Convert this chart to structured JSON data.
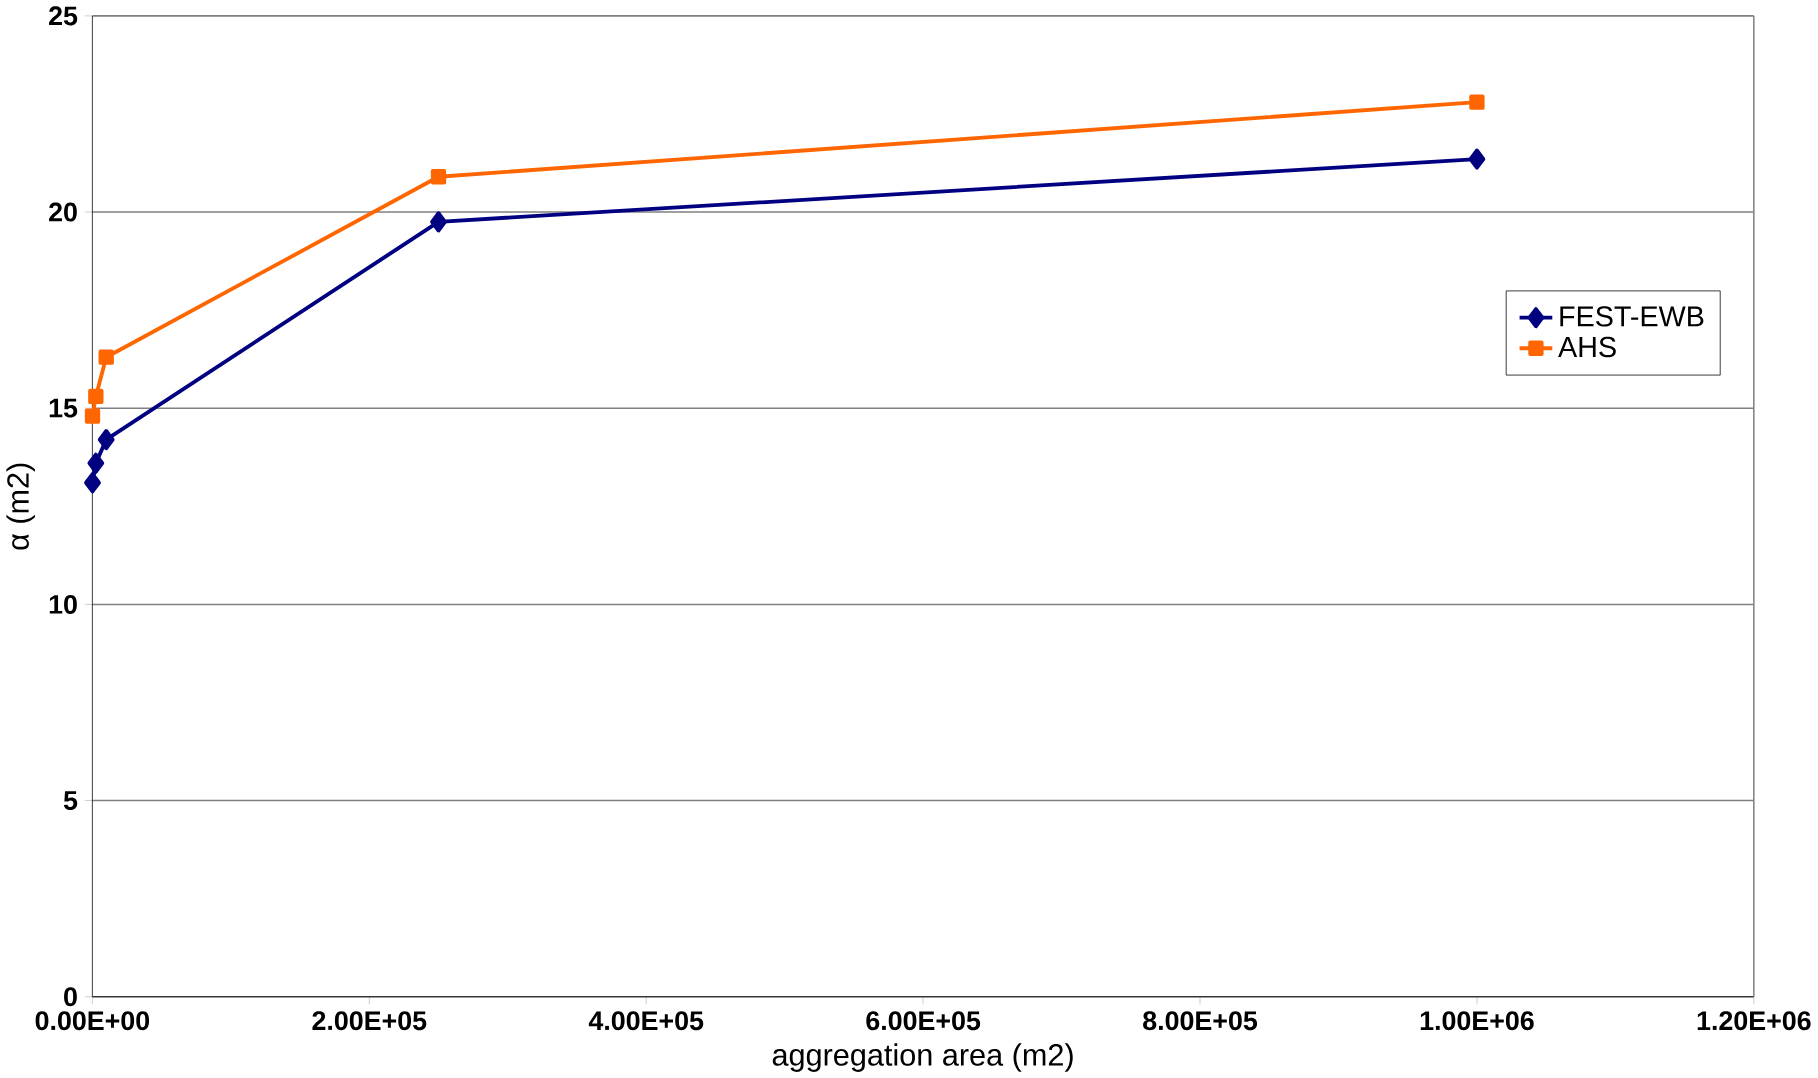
{
  "chart_data": {
    "type": "line",
    "xlabel": "aggregation area (m2)",
    "ylabel": "α (m2)",
    "xlim": [
      0,
      1200000
    ],
    "ylim": [
      0,
      25
    ],
    "xticks": [
      {
        "value": 0,
        "label": "0.00E+00"
      },
      {
        "value": 200000,
        "label": "2.00E+05"
      },
      {
        "value": 400000,
        "label": "4.00E+05"
      },
      {
        "value": 600000,
        "label": "6.00E+05"
      },
      {
        "value": 800000,
        "label": "8.00E+05"
      },
      {
        "value": 1000000,
        "label": "1.00E+06"
      },
      {
        "value": 1200000,
        "label": "1.20E+06"
      }
    ],
    "yticks": [
      0,
      5,
      10,
      15,
      20,
      25
    ],
    "grid": "y",
    "legend": "right",
    "x": [
      100,
      2500,
      10000,
      250000,
      1000000
    ],
    "series": [
      {
        "name": "FEST-EWB",
        "color": "#000080",
        "marker": "diamond",
        "values": [
          13.1,
          13.6,
          14.2,
          19.75,
          21.35
        ]
      },
      {
        "name": "AHS",
        "color": "#ff6600",
        "marker": "square",
        "values": [
          14.8,
          15.3,
          16.3,
          20.9,
          22.8
        ]
      }
    ]
  }
}
